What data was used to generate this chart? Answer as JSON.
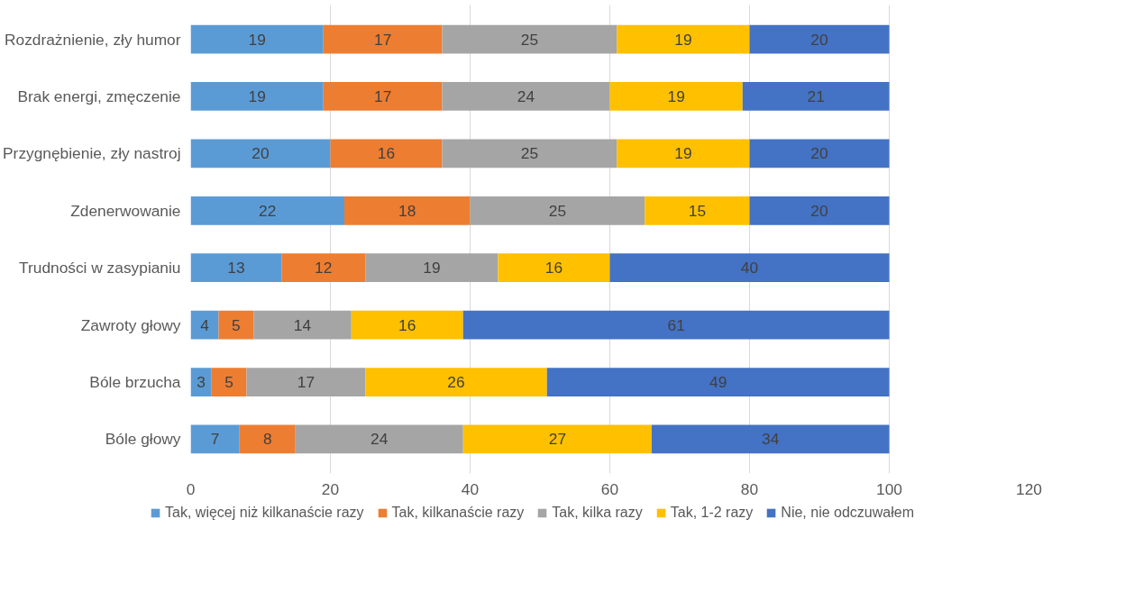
{
  "chart_data": {
    "type": "bar",
    "orientation": "horizontal",
    "stacked": true,
    "data_labels": true,
    "grid": "x",
    "legend": "bottom",
    "categories": [
      "Rozdrażnienie, zły humor",
      "Brak energi, zmęczenie",
      "Przygnębienie, zły nastroj",
      "Zdenerwowanie",
      "Trudności w zasypianiu",
      "Zawroty głowy",
      "Bóle brzucha",
      "Bóle głowy"
    ],
    "xlim": [
      0,
      120
    ],
    "xticks": [
      0,
      20,
      40,
      60,
      80,
      100,
      120
    ],
    "series": [
      {
        "name": "Tak, więcej niż kilkanaście razy",
        "color": "#5b9bd5",
        "values": [
          19,
          19,
          20,
          22,
          13,
          4,
          3,
          7
        ]
      },
      {
        "name": "Tak, kilkanaście razy",
        "color": "#ed7d31",
        "values": [
          17,
          17,
          16,
          18,
          12,
          5,
          5,
          8
        ]
      },
      {
        "name": "Tak, kilka razy",
        "color": "#a5a5a5",
        "values": [
          25,
          24,
          25,
          25,
          19,
          14,
          17,
          24
        ]
      },
      {
        "name": "Tak, 1-2 razy",
        "color": "#ffc000",
        "values": [
          19,
          19,
          19,
          15,
          16,
          16,
          26,
          27
        ]
      },
      {
        "name": "Nie, nie odczuwałem",
        "color": "#4472c4",
        "values": [
          20,
          21,
          20,
          20,
          40,
          61,
          49,
          34
        ]
      }
    ]
  }
}
